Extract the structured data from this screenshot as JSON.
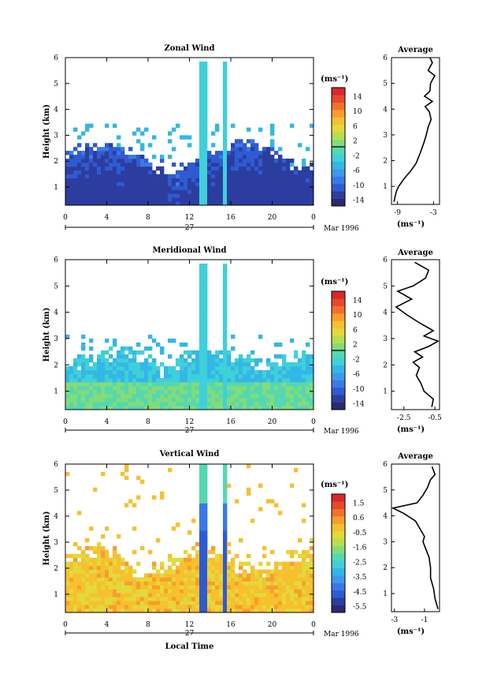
{
  "chart_data": [
    {
      "type": "heatmap",
      "title": "Zonal Wind",
      "ylabel": "Height (km)",
      "xlabel": "",
      "date_label": "27",
      "month_label": "Mar 1996",
      "x_ticks": [
        "0",
        "4",
        "8",
        "12",
        "16",
        "20",
        "0"
      ],
      "xlim": [
        0,
        24
      ],
      "y_ticks": [
        "1",
        "2",
        "3",
        "4",
        "5",
        "6"
      ],
      "ylim": [
        0.3,
        6
      ],
      "colorbar": {
        "unit": "(ms⁻¹)",
        "tick_labels": [
          "14",
          "10",
          "6",
          "2",
          "-2",
          "-6",
          "-10",
          "-14"
        ],
        "range": [
          -16,
          16
        ],
        "marker": 0
      },
      "profile": {
        "title": "Average",
        "xlabel": "(ms⁻¹)",
        "x_ticks": [
          "-9",
          "-3"
        ],
        "xlim": [
          -10,
          -2
        ],
        "ylim": [
          0.3,
          6
        ],
        "y_ticks": [
          "1",
          "2",
          "3",
          "4",
          "5",
          "6"
        ],
        "points": [
          [
            -9.6,
            0.4
          ],
          [
            -9.2,
            0.8
          ],
          [
            -8.8,
            1.0
          ],
          [
            -7.9,
            1.3
          ],
          [
            -6.8,
            1.6
          ],
          [
            -5.9,
            1.9
          ],
          [
            -5.2,
            2.3
          ],
          [
            -4.6,
            2.7
          ],
          [
            -4.2,
            3.0
          ],
          [
            -3.9,
            3.3
          ],
          [
            -3.4,
            3.6
          ],
          [
            -3.7,
            3.9
          ],
          [
            -4.4,
            4.1
          ],
          [
            -3.2,
            4.3
          ],
          [
            -4.5,
            4.5
          ],
          [
            -3.6,
            4.7
          ],
          [
            -3.5,
            5.0
          ],
          [
            -2.8,
            5.3
          ],
          [
            -3.9,
            5.5
          ],
          [
            -3.2,
            5.8
          ],
          [
            -3.6,
            6.0
          ]
        ]
      }
    },
    {
      "type": "heatmap",
      "title": "Meridional Wind",
      "ylabel": "Height (km)",
      "xlabel": "",
      "date_label": "27",
      "month_label": "Mar 1996",
      "x_ticks": [
        "0",
        "4",
        "8",
        "12",
        "16",
        "20",
        "0"
      ],
      "xlim": [
        0,
        24
      ],
      "y_ticks": [
        "1",
        "2",
        "3",
        "4",
        "5",
        "6"
      ],
      "ylim": [
        0.3,
        6
      ],
      "colorbar": {
        "unit": "(ms⁻¹)",
        "tick_labels": [
          "14",
          "10",
          "6",
          "2",
          "-2",
          "-6",
          "-10",
          "-14"
        ],
        "range": [
          -16,
          16
        ],
        "marker": 0
      },
      "profile": {
        "title": "Average",
        "xlabel": "(ms⁻¹)",
        "x_ticks": [
          "-2.5",
          "-0.5"
        ],
        "xlim": [
          -3.3,
          -0.2
        ],
        "ylim": [
          0.3,
          6
        ],
        "y_ticks": [
          "1",
          "2",
          "3",
          "4",
          "5",
          "6"
        ],
        "points": [
          [
            -0.7,
            0.4
          ],
          [
            -0.6,
            0.7
          ],
          [
            -1.2,
            1.0
          ],
          [
            -1.4,
            1.3
          ],
          [
            -1.7,
            1.6
          ],
          [
            -1.5,
            1.9
          ],
          [
            -1.9,
            2.1
          ],
          [
            -1.3,
            2.3
          ],
          [
            -1.8,
            2.5
          ],
          [
            -0.9,
            2.7
          ],
          [
            -0.3,
            2.9
          ],
          [
            -1.2,
            3.1
          ],
          [
            -0.6,
            3.3
          ],
          [
            -1.5,
            3.6
          ],
          [
            -2.3,
            3.9
          ],
          [
            -3.0,
            4.2
          ],
          [
            -2.0,
            4.5
          ],
          [
            -2.9,
            4.8
          ],
          [
            -1.9,
            5.0
          ],
          [
            -1.1,
            5.3
          ],
          [
            -0.9,
            5.6
          ],
          [
            -1.8,
            5.9
          ]
        ]
      }
    },
    {
      "type": "heatmap",
      "title": "Vertical Wind",
      "ylabel": "Height (km)",
      "xlabel": "Local Time",
      "date_label": "27",
      "month_label": "Mar 1996",
      "x_ticks": [
        "0",
        "4",
        "8",
        "12",
        "16",
        "20",
        "0"
      ],
      "xlim": [
        0,
        24
      ],
      "y_ticks": [
        "1",
        "2",
        "3",
        "4",
        "5",
        "6"
      ],
      "ylim": [
        0.3,
        6
      ],
      "colorbar": {
        "unit": "(ms⁻¹)",
        "tick_labels": [
          "1.5",
          "0.6",
          "-0.5",
          "-1.6",
          "-2.5",
          "-3.5",
          "-4.5",
          "-5.5"
        ],
        "range": [
          -6,
          2
        ],
        "marker": null
      },
      "profile": {
        "title": "Average",
        "xlabel": "(ms⁻¹)",
        "x_ticks": [
          "-3",
          "-1"
        ],
        "xlim": [
          -3.2,
          0
        ],
        "ylim": [
          0.3,
          6
        ],
        "y_ticks": [
          "1",
          "2",
          "3",
          "4",
          "5",
          "6"
        ],
        "points": [
          [
            -0.1,
            0.4
          ],
          [
            -0.3,
            0.8
          ],
          [
            -0.4,
            1.2
          ],
          [
            -0.6,
            1.6
          ],
          [
            -0.6,
            2.0
          ],
          [
            -0.7,
            2.4
          ],
          [
            -0.9,
            2.7
          ],
          [
            -1.1,
            3.0
          ],
          [
            -1.0,
            3.2
          ],
          [
            -1.3,
            3.5
          ],
          [
            -1.6,
            3.8
          ],
          [
            -2.4,
            4.1
          ],
          [
            -3.1,
            4.3
          ],
          [
            -1.5,
            4.5
          ],
          [
            -1.1,
            4.8
          ],
          [
            -0.8,
            5.1
          ],
          [
            -0.6,
            5.4
          ],
          [
            -0.3,
            5.6
          ],
          [
            -0.5,
            5.9
          ]
        ]
      }
    }
  ]
}
